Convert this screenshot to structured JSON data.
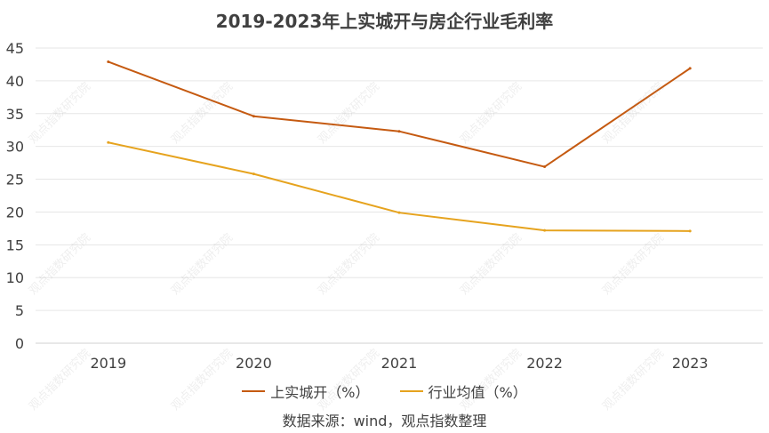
{
  "chart_data": {
    "type": "line",
    "title": "2019-2023年上实城开与房企行业毛利率",
    "categories": [
      "2019",
      "2020",
      "2021",
      "2022",
      "2023"
    ],
    "series": [
      {
        "name": "上实城开（%）",
        "values": [
          42.9,
          34.6,
          32.3,
          26.9,
          41.9
        ],
        "color": "#c55a11"
      },
      {
        "name": "行业均值（%）",
        "values": [
          30.6,
          25.8,
          19.9,
          17.2,
          17.1
        ],
        "color": "#e6a31e"
      }
    ],
    "ylim": [
      0,
      45
    ],
    "yticks": [
      0,
      5,
      10,
      15,
      20,
      25,
      30,
      35,
      40,
      45
    ],
    "grid": true,
    "legend_position": "bottom",
    "xlabel": "",
    "ylabel": ""
  },
  "source_note": "数据来源：wind，观点指数整理",
  "watermark": "观点指数研究院"
}
